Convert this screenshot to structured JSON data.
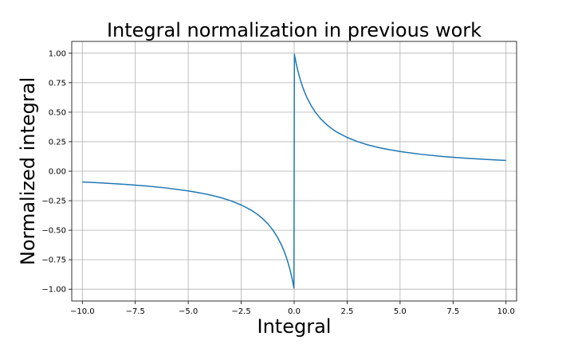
{
  "chart_data": {
    "type": "line",
    "title": "Integral normalization in previous work",
    "xlabel": "Integral",
    "ylabel": "Normalized integral",
    "xlim": [
      -10.5,
      10.5
    ],
    "ylim": [
      -1.1,
      1.1
    ],
    "x_ticks": [
      -10.0,
      -7.5,
      -5.0,
      -2.5,
      0.0,
      2.5,
      5.0,
      7.5,
      10.0
    ],
    "x_tick_labels": [
      "−10.0",
      "−7.5",
      "−5.0",
      "−2.5",
      "0.0",
      "2.5",
      "5.0",
      "7.5",
      "10.0"
    ],
    "y_ticks": [
      1.0,
      0.75,
      0.5,
      0.25,
      0.0,
      -0.25,
      -0.5,
      -0.75,
      -1.0
    ],
    "y_tick_labels": [
      "1.00",
      "0.75",
      "0.50",
      "0.25",
      "0.00",
      "−0.25",
      "−0.50",
      "−0.75",
      "−1.00"
    ],
    "grid": true,
    "series_color": "#1f77b4",
    "series": [
      {
        "x": [
          -10.0,
          -9.0,
          -8.0,
          -7.0,
          -6.0,
          -5.0,
          -4.5,
          -4.0,
          -3.5,
          -3.0,
          -2.5,
          -2.0,
          -1.75,
          -1.5,
          -1.25,
          -1.0,
          -0.8,
          -0.6,
          -0.5,
          -0.4,
          -0.3,
          -0.2,
          -0.15,
          -0.1,
          -0.05,
          -0.01,
          0.01,
          0.05,
          0.1,
          0.15,
          0.2,
          0.3,
          0.4,
          0.5,
          0.6,
          0.8,
          1.0,
          1.25,
          1.5,
          1.75,
          2.0,
          2.5,
          3.0,
          3.5,
          4.0,
          4.5,
          5.0,
          6.0,
          7.0,
          8.0,
          9.0,
          10.0
        ],
        "y": [
          -0.091,
          -0.1,
          -0.111,
          -0.125,
          -0.143,
          -0.167,
          -0.182,
          -0.2,
          -0.222,
          -0.25,
          -0.286,
          -0.333,
          -0.364,
          -0.4,
          -0.444,
          -0.5,
          -0.556,
          -0.625,
          -0.667,
          -0.714,
          -0.769,
          -0.833,
          -0.87,
          -0.909,
          -0.952,
          -0.99,
          0.99,
          0.952,
          0.909,
          0.87,
          0.833,
          0.769,
          0.714,
          0.667,
          0.625,
          0.556,
          0.5,
          0.444,
          0.4,
          0.364,
          0.333,
          0.286,
          0.25,
          0.222,
          0.2,
          0.182,
          0.167,
          0.143,
          0.125,
          0.111,
          0.1,
          0.091
        ]
      }
    ]
  }
}
